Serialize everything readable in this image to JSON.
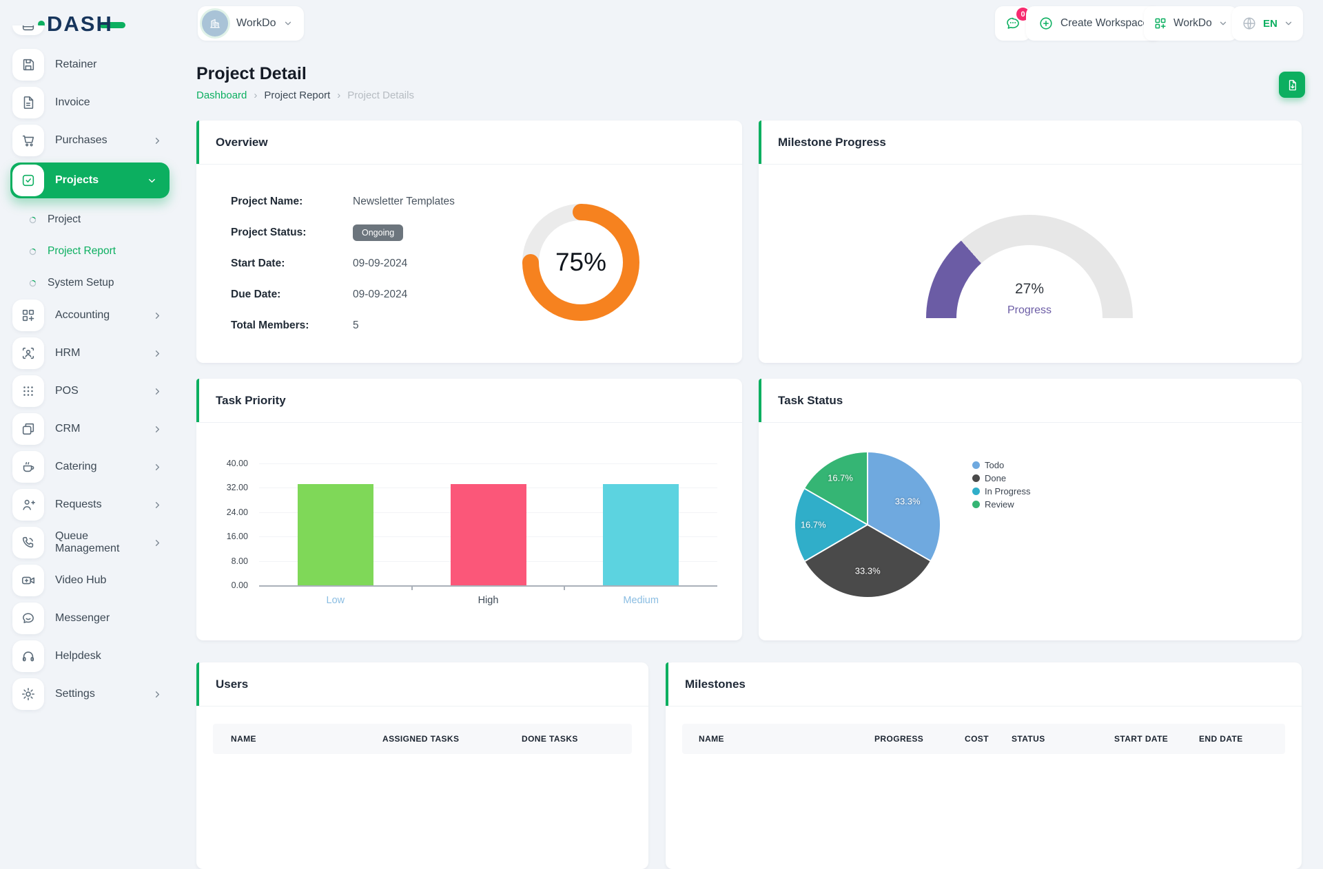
{
  "brand": {
    "name": "DASH"
  },
  "header": {
    "workspace_selector": {
      "label": "WorkDo"
    },
    "messages": {
      "badge": "0"
    },
    "create_workspace": {
      "label": "Create Workspace"
    },
    "workspace_menu": {
      "label": "WorkDo"
    },
    "language_menu": {
      "label": "EN"
    }
  },
  "page": {
    "title": "Project Detail",
    "breadcrumb": {
      "items": [
        "Dashboard",
        "Project Report",
        "Project Details"
      ]
    }
  },
  "sidebar": {
    "items": [
      {
        "label": "Retainer",
        "icon": "save-icon"
      },
      {
        "label": "Invoice",
        "icon": "invoice-file-icon"
      },
      {
        "label": "Purchases",
        "icon": "cart-icon",
        "expandable": true
      },
      {
        "label": "Projects",
        "icon": "check-square-icon",
        "expandable": true,
        "active": true
      },
      {
        "label": "Project",
        "sub": true
      },
      {
        "label": "Project Report",
        "sub": true,
        "active": true
      },
      {
        "label": "System Setup",
        "sub": true
      },
      {
        "label": "Accounting",
        "icon": "grid-plus-icon",
        "expandable": true
      },
      {
        "label": "HRM",
        "icon": "user-scan-icon",
        "expandable": true
      },
      {
        "label": "POS",
        "icon": "grid-dots-icon",
        "expandable": true
      },
      {
        "label": "CRM",
        "icon": "windows-icon",
        "expandable": true
      },
      {
        "label": "Catering",
        "icon": "coffee-icon",
        "expandable": true
      },
      {
        "label": "Requests",
        "icon": "user-plus-icon",
        "expandable": true
      },
      {
        "label": "Queue Management",
        "icon": "phone-call-icon",
        "expandable": true
      },
      {
        "label": "Video Hub",
        "icon": "video-camera-icon"
      },
      {
        "label": "Messenger",
        "icon": "message-bubble-icon"
      },
      {
        "label": "Helpdesk",
        "icon": "headphones-icon"
      },
      {
        "label": "Settings",
        "icon": "gear-icon",
        "expandable": true
      }
    ]
  },
  "overview": {
    "title": "Overview",
    "fields": [
      {
        "label": "Project Name:",
        "value": "Newsletter Templates"
      },
      {
        "label": "Project Status:",
        "value": "Ongoing",
        "badge": true
      },
      {
        "label": "Start Date:",
        "value": "09-09-2024"
      },
      {
        "label": "Due Date:",
        "value": "09-09-2024"
      },
      {
        "label": "Total Members:",
        "value": "5"
      }
    ]
  },
  "cards": {
    "milestone_progress_title": "Milestone Progress",
    "task_priority_title": "Task Priority",
    "task_status_title": "Task Status"
  },
  "users_table": {
    "title": "Users",
    "columns": [
      "NAME",
      "ASSIGNED TASKS",
      "DONE TASKS"
    ]
  },
  "milestones_table": {
    "title": "Milestones",
    "columns": [
      "NAME",
      "PROGRESS",
      "COST",
      "STATUS",
      "START DATE",
      "END DATE"
    ]
  },
  "chart_data": [
    {
      "id": "overview_completion",
      "type": "donut",
      "title": "Overview project completion",
      "value": 75,
      "label": "75%",
      "range": [
        0,
        100
      ],
      "color": "#f6821f",
      "track_color": "#ebebeb"
    },
    {
      "id": "milestone_gauge",
      "type": "gauge",
      "title": "Milestone Progress",
      "value": 27,
      "label": "27%",
      "sublabel": "Progress",
      "range": [
        0,
        100
      ],
      "color": "#6b5ca5",
      "track_color": "#e7e7e7"
    },
    {
      "id": "task_priority",
      "type": "bar",
      "title": "Task Priority",
      "categories": [
        "Low",
        "High",
        "Medium"
      ],
      "values": [
        33.33,
        33.33,
        33.33
      ],
      "bar_colors": [
        "#7fd858",
        "#fb5779",
        "#5cd3e0"
      ],
      "category_label_colors": [
        "#8abde2",
        "#3e4a56",
        "#8abde2"
      ],
      "ylim": [
        0,
        40
      ],
      "yticks": [
        "40.00",
        "32.00",
        "24.00",
        "16.00",
        "8.00",
        "0.00"
      ],
      "grid": true,
      "legend_position": "none"
    },
    {
      "id": "task_status",
      "type": "pie",
      "title": "Task Status",
      "labels": [
        "Todo",
        "Done",
        "In Progress",
        "Review"
      ],
      "values": [
        33.3,
        33.3,
        16.7,
        16.7
      ],
      "slice_labels": [
        "33.3%",
        "33.3%",
        "16.7%",
        "16.7%"
      ],
      "colors": [
        "#6fa9df",
        "#4a4a4a",
        "#30aec9",
        "#35b574"
      ],
      "legend_position": "right"
    }
  ],
  "colors": {
    "primary": "#0caf60",
    "notification_badge": "#f72b6f",
    "status_badge_bg": "#6c757d",
    "donut_orange": "#f6821f",
    "gauge_purple": "#6b5ca5"
  }
}
